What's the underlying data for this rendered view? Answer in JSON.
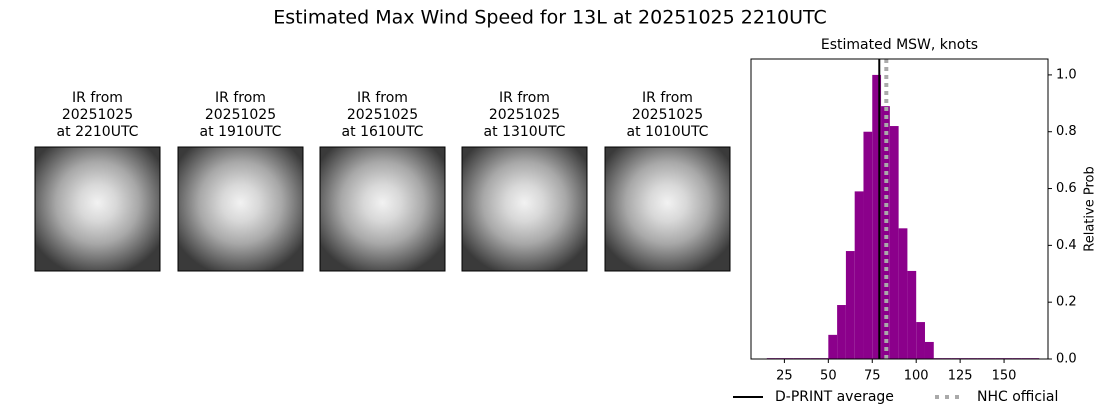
{
  "title": "Estimated Max Wind Speed for 13L at 20251025 2210UTC",
  "panels": [
    {
      "lines": [
        "IR from",
        "20251025",
        "at 2210UTC"
      ]
    },
    {
      "lines": [
        "IR from",
        "20251025",
        "at 1910UTC"
      ]
    },
    {
      "lines": [
        "IR from",
        "20251025",
        "at 1610UTC"
      ]
    },
    {
      "lines": [
        "IR from",
        "20251025",
        "at 1310UTC"
      ]
    },
    {
      "lines": [
        "IR from",
        "20251025",
        "at 1010UTC"
      ]
    }
  ],
  "chart_data": {
    "type": "histogram",
    "title": "Estimated MSW, knots",
    "ylabel": "Relative Prob",
    "bins": [
      15,
      20,
      25,
      30,
      35,
      40,
      45,
      50,
      55,
      60,
      65,
      70,
      75,
      80,
      85,
      90,
      95,
      100,
      105,
      110,
      115,
      120,
      125,
      130,
      135,
      140,
      145,
      150,
      155,
      160,
      165,
      170
    ],
    "values": [
      0.003,
      0.003,
      0.003,
      0.003,
      0.003,
      0.003,
      0.003,
      0.085,
      0.19,
      0.38,
      0.59,
      0.8,
      1.0,
      0.89,
      0.82,
      0.46,
      0.31,
      0.13,
      0.06,
      0.003,
      0.003,
      0.003,
      0.003,
      0.003,
      0.003,
      0.003,
      0.003,
      0.003,
      0.003,
      0.003,
      0.003
    ],
    "color": "#8b008b",
    "xlim": [
      6,
      175
    ],
    "xticks": [
      25,
      50,
      75,
      100,
      125,
      150
    ],
    "ylim": [
      0,
      1.056
    ],
    "yticks": [
      {
        "value": 0,
        "label": "0.0"
      },
      0.2,
      0.4,
      0.6,
      0.8,
      {
        "value": 1,
        "label": "1.0"
      }
    ],
    "lines": [
      {
        "name": "D-PRINT average",
        "x": 79,
        "color": "#000000",
        "style": "solid"
      },
      {
        "name": "NHC official",
        "x": 83,
        "color": "#aaaaaa",
        "style": "dotted"
      }
    ],
    "legend": "bottom"
  }
}
